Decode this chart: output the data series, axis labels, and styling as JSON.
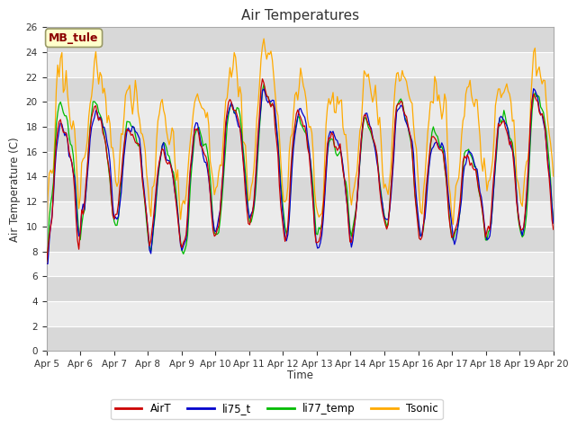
{
  "title": "Air Temperatures",
  "ylabel": "Air Temperature (C)",
  "xlabel": "Time",
  "annotation": "MB_tule",
  "ylim": [
    0,
    26
  ],
  "yticks": [
    0,
    2,
    4,
    6,
    8,
    10,
    12,
    14,
    16,
    18,
    20,
    22,
    24,
    26
  ],
  "xtick_labels": [
    "Apr 5",
    "Apr 6",
    "Apr 7",
    "Apr 8",
    "Apr 9",
    "Apr 10",
    "Apr 11",
    "Apr 12",
    "Apr 13",
    "Apr 14",
    "Apr 15",
    "Apr 16",
    "Apr 17",
    "Apr 18",
    "Apr 19",
    "Apr 20"
  ],
  "colors": {
    "AirT": "#cc0000",
    "li75_t": "#0000cc",
    "li77_temp": "#00bb00",
    "Tsonic": "#ffaa00"
  },
  "fig_bg": "#ffffff",
  "plot_bg_light": "#ebebeb",
  "plot_bg_dark": "#d8d8d8",
  "legend_labels": [
    "AirT",
    "li75_t",
    "li77_temp",
    "Tsonic"
  ]
}
